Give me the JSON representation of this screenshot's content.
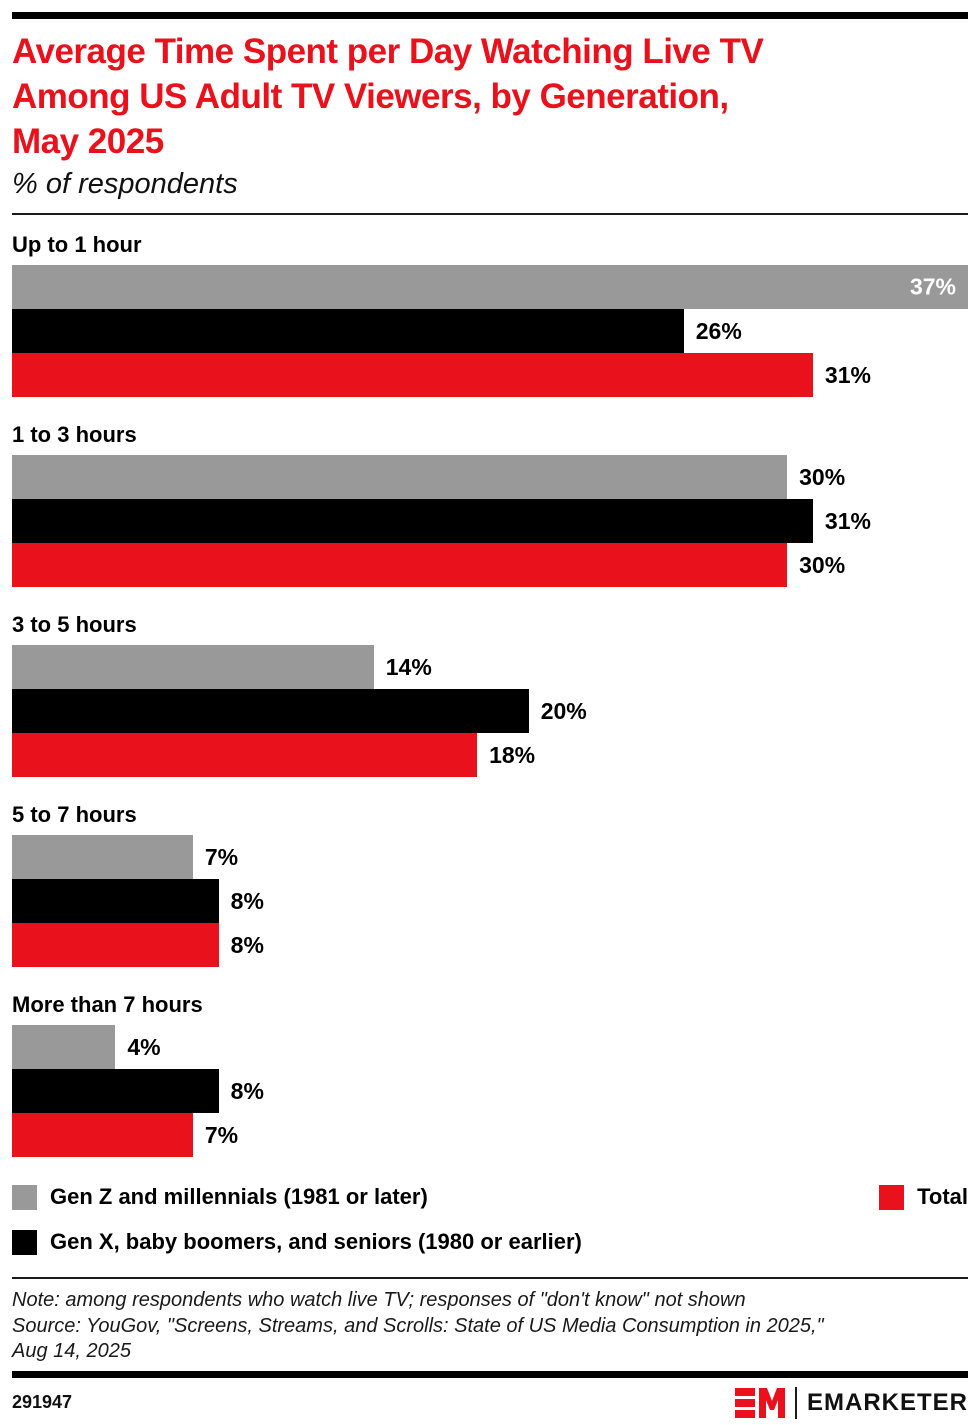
{
  "header": {
    "title_lines": [
      "Average Time Spent per Day Watching Live TV",
      "Among US Adult TV Viewers, by Generation,",
      "May 2025"
    ],
    "subtitle": "% of respondents"
  },
  "colors": {
    "accent_red": "#e8111c",
    "series_gray": "#999999",
    "series_black": "#000000"
  },
  "chart_data": {
    "type": "bar",
    "orientation": "horizontal",
    "unit": "%",
    "xlim": [
      0,
      37
    ],
    "value_labels": true,
    "grid": false,
    "categories": [
      "Up to 1 hour",
      "1 to 3 hours",
      "3 to 5 hours",
      "5 to 7 hours",
      "More than 7 hours"
    ],
    "series": [
      {
        "name": "Gen Z and millennials (1981 or later)",
        "color": "#999999",
        "values": [
          37,
          30,
          14,
          7,
          4
        ]
      },
      {
        "name": "Gen X, baby boomers, and seniors (1980 or earlier)",
        "color": "#000000",
        "values": [
          26,
          31,
          20,
          8,
          8
        ]
      },
      {
        "name": "Total",
        "color": "#e8111c",
        "values": [
          31,
          30,
          18,
          8,
          7
        ]
      }
    ]
  },
  "legend": {
    "items": [
      {
        "label": "Gen Z and millennials (1981 or later)",
        "color": "#999999"
      },
      {
        "label": "Gen X, baby boomers, and seniors (1980 or earlier)",
        "color": "#000000"
      },
      {
        "label": "Total",
        "color": "#e8111c"
      }
    ]
  },
  "notes": {
    "lines": [
      "Note: among respondents who watch live TV; responses of \"don't know\" not shown",
      "Source: YouGov, \"Screens, Streams, and Scrolls: State of US Media Consumption in 2025,\"",
      "Aug 14, 2025"
    ]
  },
  "footer": {
    "chart_id": "291947",
    "brand": "EMARKETER"
  }
}
